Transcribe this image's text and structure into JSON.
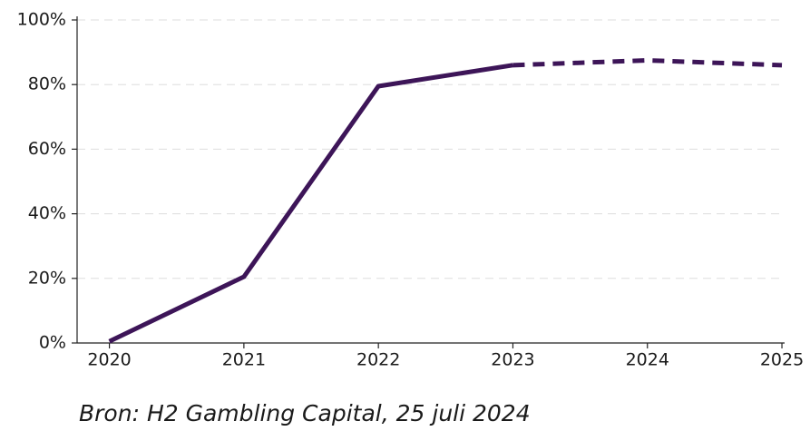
{
  "chart_data": {
    "type": "line",
    "source": "Bron: H2 Gambling Capital, 25 juli 2024",
    "x": [
      2020,
      2021,
      2022,
      2023,
      2024,
      2025
    ],
    "series": [
      {
        "color": "#3d1558",
        "style": "solid",
        "values": [
          0.5,
          20.5,
          79.5,
          86,
          null,
          null
        ]
      },
      {
        "color": "#3d1558",
        "style": "dashed",
        "values": [
          null,
          null,
          null,
          86,
          87.5,
          86
        ]
      }
    ],
    "xlim": [
      2019.76,
      2025.02
    ],
    "xticks": [
      2020,
      2021,
      2022,
      2023,
      2024,
      2025
    ],
    "ylim": [
      0,
      100
    ],
    "yticks": [
      {
        "value": 0,
        "label": "0%"
      },
      {
        "value": 20,
        "label": "20%"
      },
      {
        "value": 40,
        "label": "40%"
      },
      {
        "value": 60,
        "label": "60%"
      },
      {
        "value": 80,
        "label": "80%"
      },
      {
        "value": 100,
        "label": "100%"
      }
    ],
    "grid": true
  }
}
